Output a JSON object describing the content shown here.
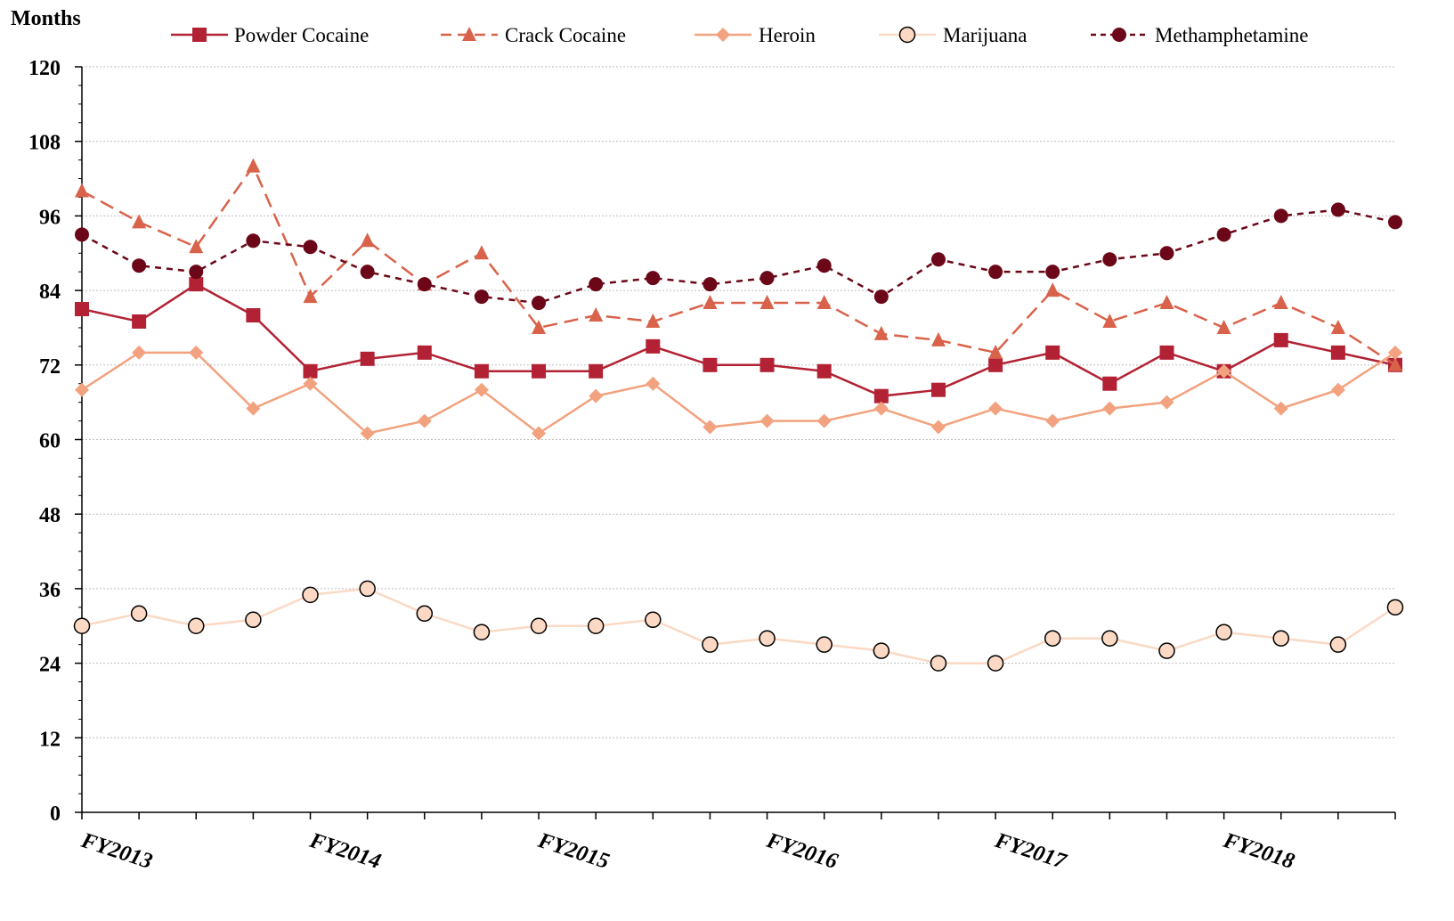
{
  "chart_data": {
    "type": "line",
    "ylabel": "Months",
    "xlabel": "",
    "ylim": [
      0,
      120
    ],
    "y_ticks": [
      0,
      12,
      24,
      36,
      48,
      60,
      72,
      84,
      96,
      108,
      120
    ],
    "x": [
      0,
      1,
      2,
      3,
      4,
      5,
      6,
      7,
      8,
      9,
      10,
      11,
      12,
      13,
      14,
      15,
      16,
      17,
      18,
      19,
      20,
      21,
      22,
      23
    ],
    "x_tick_labels": [
      {
        "x": 0,
        "label": "FY2013"
      },
      {
        "x": 4,
        "label": "FY2014"
      },
      {
        "x": 8,
        "label": "FY2015"
      },
      {
        "x": 12,
        "label": "FY2016"
      },
      {
        "x": 16,
        "label": "FY2017"
      },
      {
        "x": 20,
        "label": "FY2018"
      }
    ],
    "grid": true,
    "legend_position": "top",
    "series": [
      {
        "name": "Powder Cocaine",
        "color": "#B22234",
        "line": "solid",
        "marker": "square",
        "values": [
          81,
          79,
          85,
          80,
          71,
          73,
          74,
          71,
          71,
          71,
          75,
          72,
          72,
          71,
          67,
          68,
          72,
          74,
          69,
          74,
          71,
          76,
          74,
          72
        ]
      },
      {
        "name": "Crack Cocaine",
        "color": "#D9624A",
        "line": "dashed",
        "marker": "triangle",
        "values": [
          100,
          95,
          91,
          104,
          83,
          92,
          85,
          90,
          78,
          80,
          79,
          82,
          82,
          82,
          77,
          76,
          74,
          84,
          79,
          82,
          78,
          82,
          78,
          72
        ]
      },
      {
        "name": "Heroin",
        "color": "#F2A27E",
        "line": "solid",
        "marker": "diamond",
        "values": [
          68,
          74,
          74,
          65,
          69,
          61,
          63,
          68,
          61,
          67,
          69,
          62,
          63,
          63,
          65,
          62,
          65,
          63,
          65,
          66,
          71,
          65,
          68,
          74
        ]
      },
      {
        "name": "Marijuana",
        "color": "#FBD9C4",
        "line": "solid",
        "marker": "circle-open",
        "values": [
          30,
          32,
          30,
          31,
          35,
          36,
          32,
          29,
          30,
          30,
          31,
          27,
          28,
          27,
          26,
          24,
          24,
          28,
          28,
          26,
          29,
          28,
          27,
          33
        ]
      },
      {
        "name": "Methamphetamine",
        "color": "#6B0718",
        "line": "dotted",
        "marker": "circle",
        "values": [
          93,
          88,
          87,
          92,
          91,
          87,
          85,
          83,
          82,
          85,
          86,
          85,
          86,
          88,
          83,
          89,
          87,
          87,
          89,
          90,
          93,
          96,
          97,
          95
        ]
      }
    ]
  }
}
